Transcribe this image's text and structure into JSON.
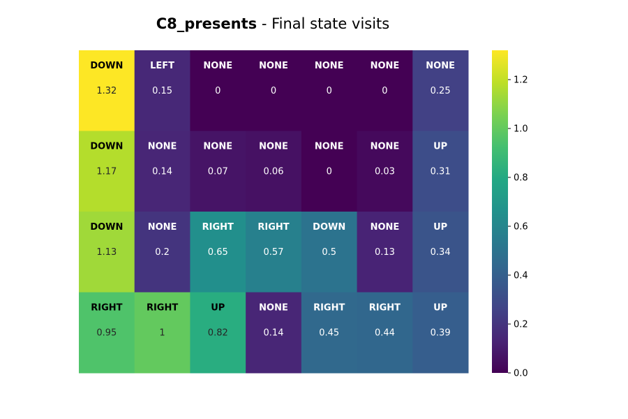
{
  "title": {
    "bold": "C8_presents",
    "rest": " - Final state visits"
  },
  "chart_data": {
    "type": "heatmap",
    "rows": 4,
    "cols": 7,
    "values": [
      [
        1.32,
        0.15,
        0,
        0,
        0,
        0,
        0.25
      ],
      [
        1.17,
        0.14,
        0.07,
        0.06,
        0,
        0.03,
        0.31
      ],
      [
        1.13,
        0.2,
        0.65,
        0.57,
        0.5,
        0.13,
        0.34
      ],
      [
        0.95,
        1,
        0.82,
        0.14,
        0.45,
        0.44,
        0.39
      ]
    ],
    "value_labels": [
      [
        "1.32",
        "0.15",
        "0",
        "0",
        "0",
        "0",
        "0.25"
      ],
      [
        "1.17",
        "0.14",
        "0.07",
        "0.06",
        "0",
        "0.03",
        "0.31"
      ],
      [
        "1.13",
        "0.2",
        "0.65",
        "0.57",
        "0.5",
        "0.13",
        "0.34"
      ],
      [
        "0.95",
        "1",
        "0.82",
        "0.14",
        "0.45",
        "0.44",
        "0.39"
      ]
    ],
    "actions": [
      [
        "DOWN",
        "LEFT",
        "NONE",
        "NONE",
        "NONE",
        "NONE",
        "NONE"
      ],
      [
        "DOWN",
        "NONE",
        "NONE",
        "NONE",
        "NONE",
        "NONE",
        "UP"
      ],
      [
        "DOWN",
        "NONE",
        "RIGHT",
        "RIGHT",
        "DOWN",
        "NONE",
        "UP"
      ],
      [
        "RIGHT",
        "RIGHT",
        "UP",
        "NONE",
        "RIGHT",
        "RIGHT",
        "UP"
      ]
    ],
    "colormap": "viridis",
    "vmin": 0,
    "vmax": 1.32,
    "colorbar": {
      "ticks": [
        0.0,
        0.2,
        0.4,
        0.6,
        0.8,
        1.0,
        1.2
      ],
      "tick_labels": [
        "0.0",
        "0.2",
        "0.4",
        "0.6",
        "0.8",
        "1.0",
        "1.2"
      ],
      "placement": "right"
    },
    "grid": false
  }
}
